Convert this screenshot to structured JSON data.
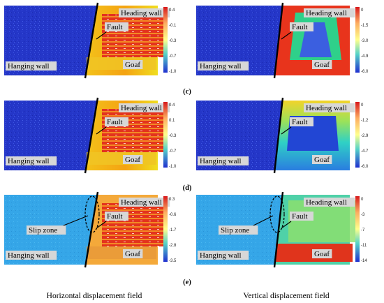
{
  "rows": [
    {
      "tag": "",
      "horizontal": {
        "labels": {
          "heading": "Heading wall",
          "fault": "Fault",
          "hanging": "Hanging wall",
          "goaf": "Goaf"
        },
        "ticks": [
          "0.4",
          "-0.1",
          "-0.3",
          "-0.7",
          "-1.0"
        ]
      },
      "vertical": {
        "labels": {
          "heading": "Heading wall",
          "fault": "Fault",
          "hanging": "Hanging wall",
          "goaf": "Goaf"
        },
        "ticks": [
          "0",
          "-1.5",
          "-3.0",
          "-4.9",
          "-6.0"
        ]
      }
    },
    {
      "tag": "(c)",
      "horizontal": {
        "labels": {
          "heading": "Heading wall",
          "fault": "Fault",
          "hanging": "Hanging wall",
          "goaf": "Goaf"
        },
        "ticks": [
          "0.4",
          "0.1",
          "-0.3",
          "-0.7",
          "-1.0"
        ]
      },
      "vertical": {
        "labels": {
          "heading": "Heading wall",
          "fault": "Fault",
          "hanging": "Hanging wall",
          "goaf": "Goaf"
        },
        "ticks": [
          "0",
          "-1.2",
          "-2.9",
          "-4.7",
          "-6.0"
        ]
      }
    },
    {
      "tag": "(d)",
      "horizontal": {
        "labels": {
          "heading": "Heading wall",
          "fault": "Fault",
          "slip": "Slip zone",
          "hanging": "Hanging wall",
          "goaf": "Goaf"
        },
        "ticks": [
          "0.3",
          "-0.6",
          "-1.7",
          "-2.8",
          "-3.5"
        ]
      },
      "vertical": {
        "labels": {
          "heading": "Heading wall",
          "fault": "Fault",
          "slip": "Slip zone",
          "hanging": "Hanging wall",
          "goaf": "Goaf"
        },
        "ticks": [
          "0",
          "-3",
          "-7",
          "-11",
          "-14"
        ]
      }
    }
  ],
  "final_tag": "(e)",
  "captions": {
    "left": "Horizontal displacement field",
    "right": "Vertical displacement field"
  },
  "colors": {
    "blue": "#2233cc",
    "red": "#e02a1a",
    "orange": "#f47a12",
    "yellow": "#f2e21c",
    "green": "#38c86a",
    "cyan": "#2cc6e8",
    "lightblue": "#3aa0e8",
    "label_box": "#d7d7d7"
  }
}
